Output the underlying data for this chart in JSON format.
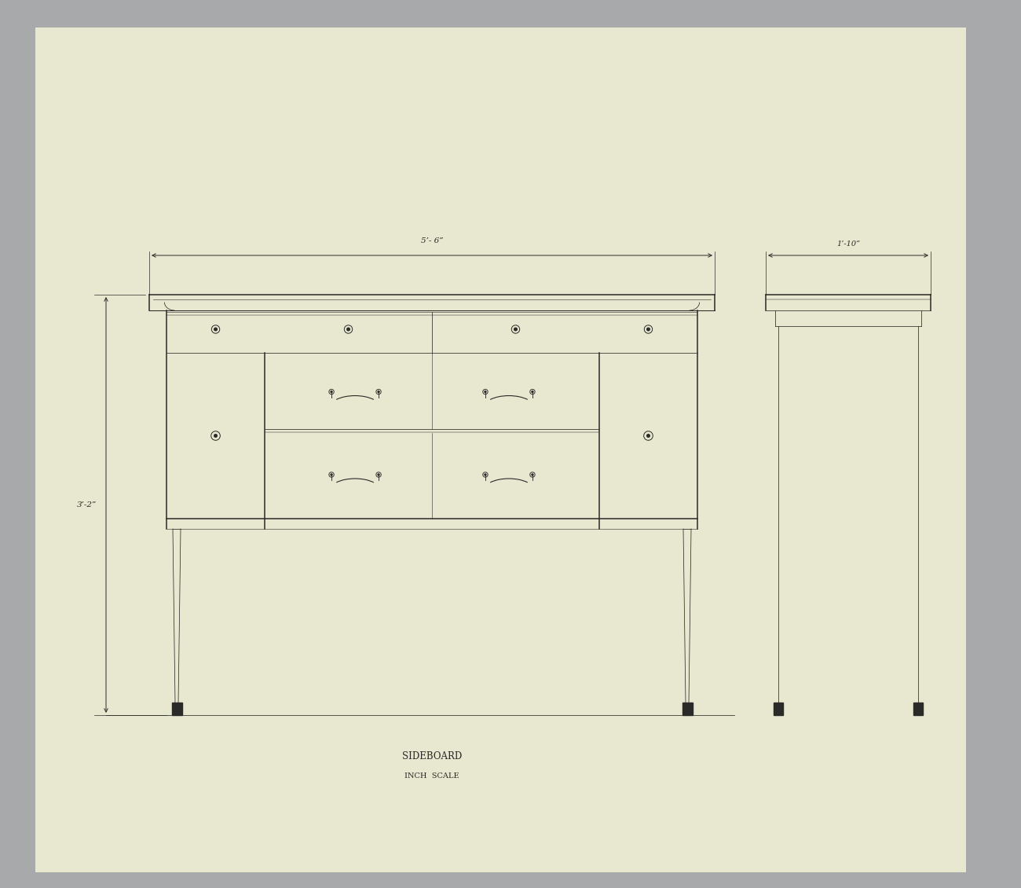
{
  "bg_color": "#a8a9aa",
  "paper_color": "#e8e7d0",
  "line_color": "#2a2a28",
  "title": "SIDEBOARD",
  "subtitle": "INCH  SCALE",
  "dim_width": "5’- 6”",
  "dim_height": "3’-2”",
  "dim_side": "1’-10”",
  "title_fontsize": 8.5,
  "subtitle_fontsize": 7,
  "dim_fontsize": 7.5
}
